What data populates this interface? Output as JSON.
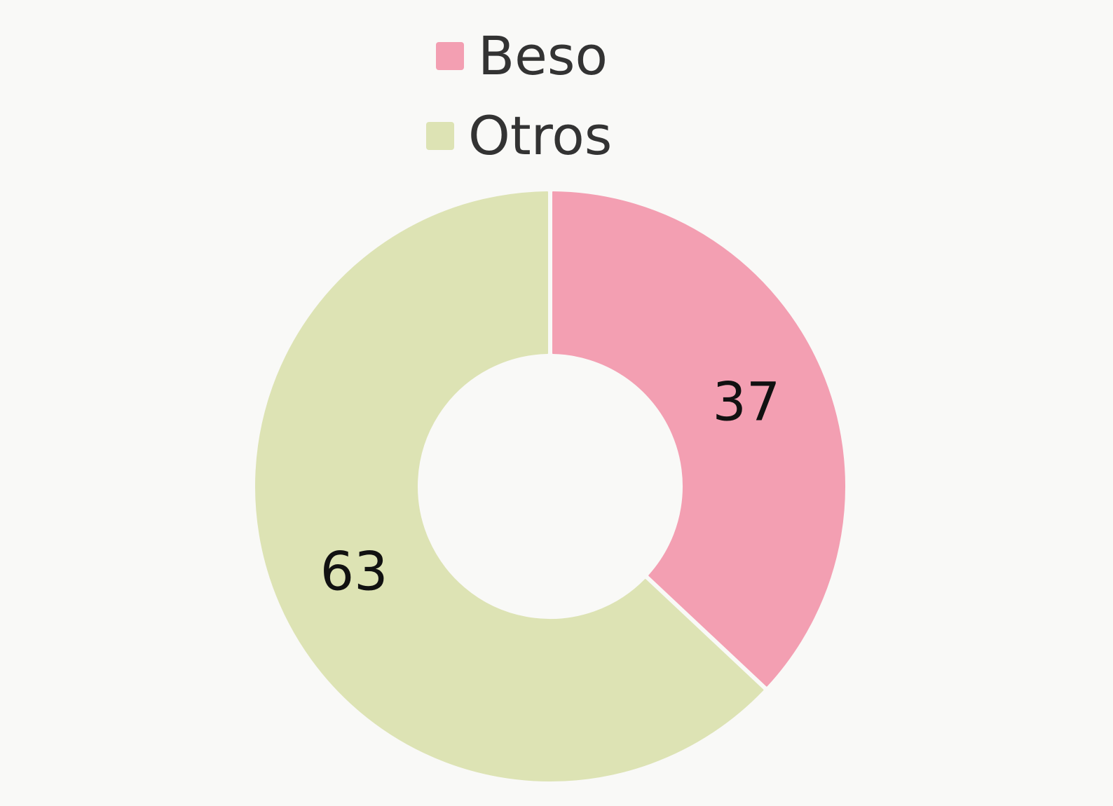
{
  "chart_data": {
    "type": "pie",
    "variant": "donut",
    "title": "",
    "categories": [
      "Beso",
      "Otros"
    ],
    "values": [
      37,
      63
    ],
    "colors": [
      "#f39fb2",
      "#dde3b4"
    ],
    "data_labels": [
      "37",
      "63"
    ],
    "legend": {
      "placement": "top-center",
      "entries": [
        {
          "label": "Beso",
          "color": "#f39fb2"
        },
        {
          "label": "Otros",
          "color": "#dde3b4"
        }
      ]
    }
  }
}
